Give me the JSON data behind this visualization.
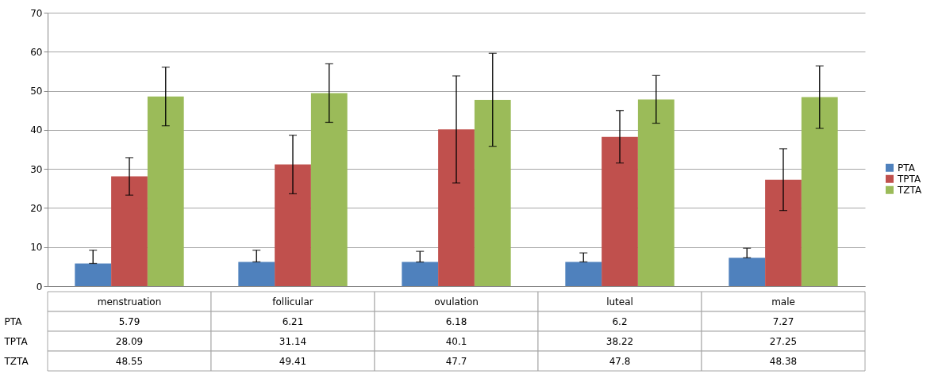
{
  "chart_data": {
    "type": "bar",
    "categories": [
      "menstruation",
      "follicular",
      "ovulation",
      "luteal",
      "male"
    ],
    "series": [
      {
        "name": "PTA",
        "color": "#4f81bd",
        "values": [
          5.79,
          6.21,
          6.18,
          6.2,
          7.27
        ],
        "errors": [
          [
            5.79,
            9.2
          ],
          [
            6.21,
            9.2
          ],
          [
            6.18,
            8.9
          ],
          [
            6.2,
            8.5
          ],
          [
            7.27,
            9.7
          ]
        ]
      },
      {
        "name": "TPTA",
        "color": "#c0504d",
        "values": [
          28.09,
          31.14,
          40.1,
          38.22,
          27.25
        ],
        "errors": [
          4.8,
          7.5,
          13.7,
          6.7,
          7.9
        ]
      },
      {
        "name": "TZTA",
        "color": "#9bbb59",
        "values": [
          48.55,
          49.41,
          47.7,
          47.8,
          48.38
        ],
        "errors": [
          7.5,
          7.5,
          11.9,
          6.1,
          8.0
        ]
      }
    ],
    "ylim": [
      0,
      70
    ],
    "yticks": [
      0,
      10,
      20,
      30,
      40,
      50,
      60,
      70
    ],
    "grid": "y",
    "legend": "right",
    "data_labels": true
  }
}
